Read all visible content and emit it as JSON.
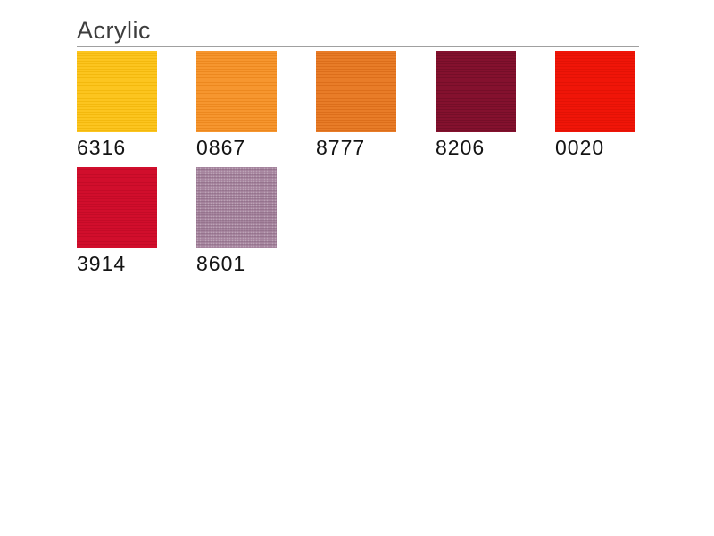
{
  "page": {
    "title": "Acrylic"
  },
  "colors": {
    "title_text": "#3d3d3d",
    "label_text": "#141414",
    "rule": "#a0a0a0",
    "background": "#ffffff"
  },
  "swatches": [
    {
      "code": "6316",
      "color": "#fcc51f",
      "stripe": "#f3b90e",
      "texture": "lines"
    },
    {
      "code": "0867",
      "color": "#f6962f",
      "stripe": "#ec881f",
      "texture": "lines"
    },
    {
      "code": "8777",
      "color": "#e87c28",
      "stripe": "#dc6e1b",
      "texture": "lines"
    },
    {
      "code": "8206",
      "color": "#84112e",
      "stripe": "#750e28",
      "texture": "lines"
    },
    {
      "code": "0020",
      "color": "#f01508",
      "stripe": "#e31205",
      "texture": "lines"
    },
    {
      "code": "3914",
      "color": "#d10e2c",
      "stripe": "#c40b27",
      "texture": "lines"
    },
    {
      "code": "8601",
      "color": "#a2809a",
      "stripe": "#93718b",
      "texture": "weave"
    }
  ]
}
